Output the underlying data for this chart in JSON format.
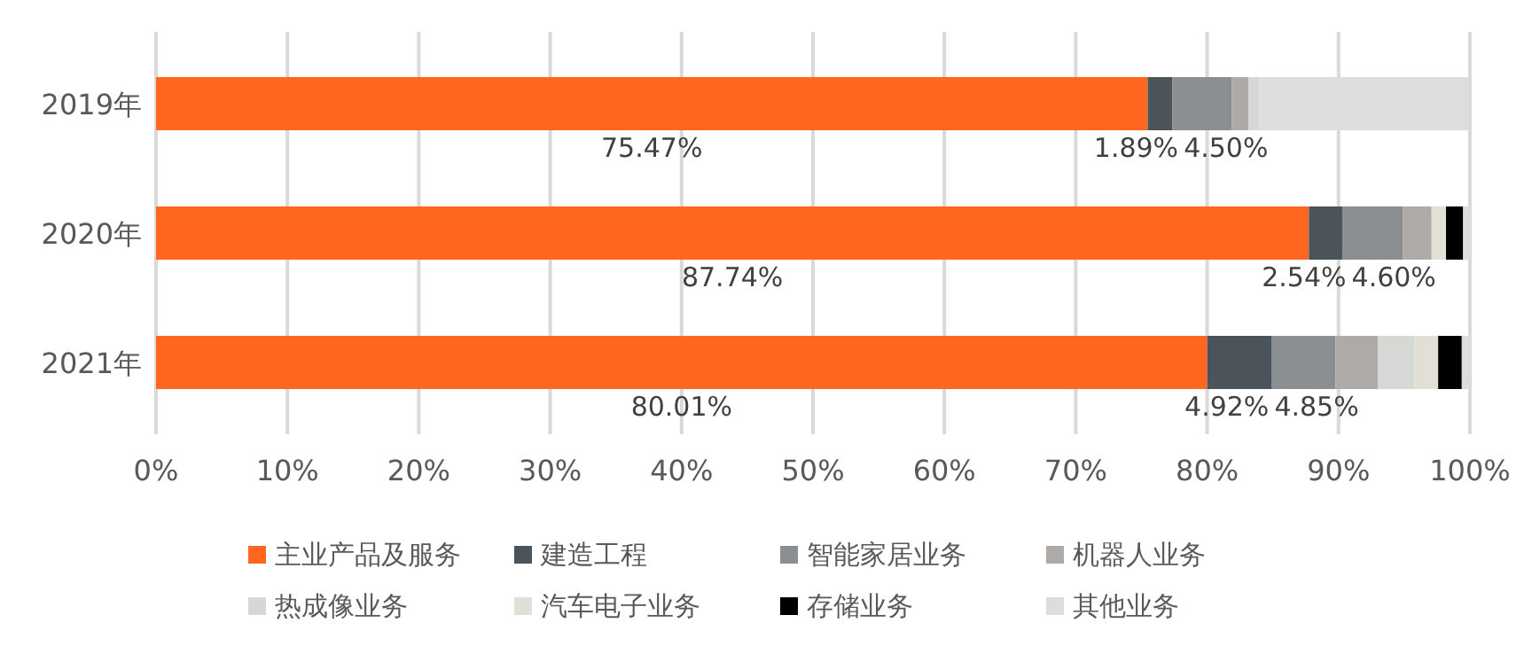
{
  "chart_data": {
    "type": "bar",
    "orientation": "horizontal",
    "stacked": true,
    "categories": [
      "2019年",
      "2020年",
      "2021年"
    ],
    "xlim": [
      0,
      100
    ],
    "xticks": [
      {
        "value": 0,
        "label": "0%"
      },
      {
        "value": 10,
        "label": "10%"
      },
      {
        "value": 20,
        "label": "20%"
      },
      {
        "value": 30,
        "label": "30%"
      },
      {
        "value": 40,
        "label": "40%"
      },
      {
        "value": 50,
        "label": "50%"
      },
      {
        "value": 60,
        "label": "60%"
      },
      {
        "value": 70,
        "label": "70%"
      },
      {
        "value": 80,
        "label": "80%"
      },
      {
        "value": 90,
        "label": "90%"
      },
      {
        "value": 100,
        "label": "100%"
      }
    ],
    "grid": "x",
    "legend": "bottom",
    "series": [
      {
        "name": "主业产品及服务",
        "color": "#ff6620",
        "values": [
          75.47,
          87.74,
          80.01
        ],
        "value_labels": [
          "75.47%",
          "87.74%",
          "80.01%"
        ]
      },
      {
        "name": "建造工程",
        "color": "#4a545a",
        "values": [
          1.89,
          2.54,
          4.92
        ],
        "value_labels": [
          "1.89%",
          "2.54%",
          "4.92%"
        ]
      },
      {
        "name": "智能家居业务",
        "color": "#8c8f91",
        "values": [
          4.5,
          4.6,
          4.85
        ],
        "value_labels": [
          "4.50%",
          "4.60%",
          "4.85%"
        ]
      },
      {
        "name": "机器人业务",
        "color": "#aeaaa8",
        "values": [
          1.3,
          2.2,
          3.2
        ]
      },
      {
        "name": "热成像业务",
        "color": "#d6d8d6",
        "values": [
          0.8,
          0,
          2.8
        ]
      },
      {
        "name": "汽车电子业务",
        "color": "#e2dfd6",
        "values": [
          0,
          1.1,
          1.8
        ]
      },
      {
        "name": "存储业务",
        "color": "#000000",
        "values": [
          0,
          1.3,
          1.8
        ]
      },
      {
        "name": "其他业务",
        "color": "#dddddd",
        "values": [
          16,
          0.5,
          0.6
        ]
      }
    ]
  }
}
